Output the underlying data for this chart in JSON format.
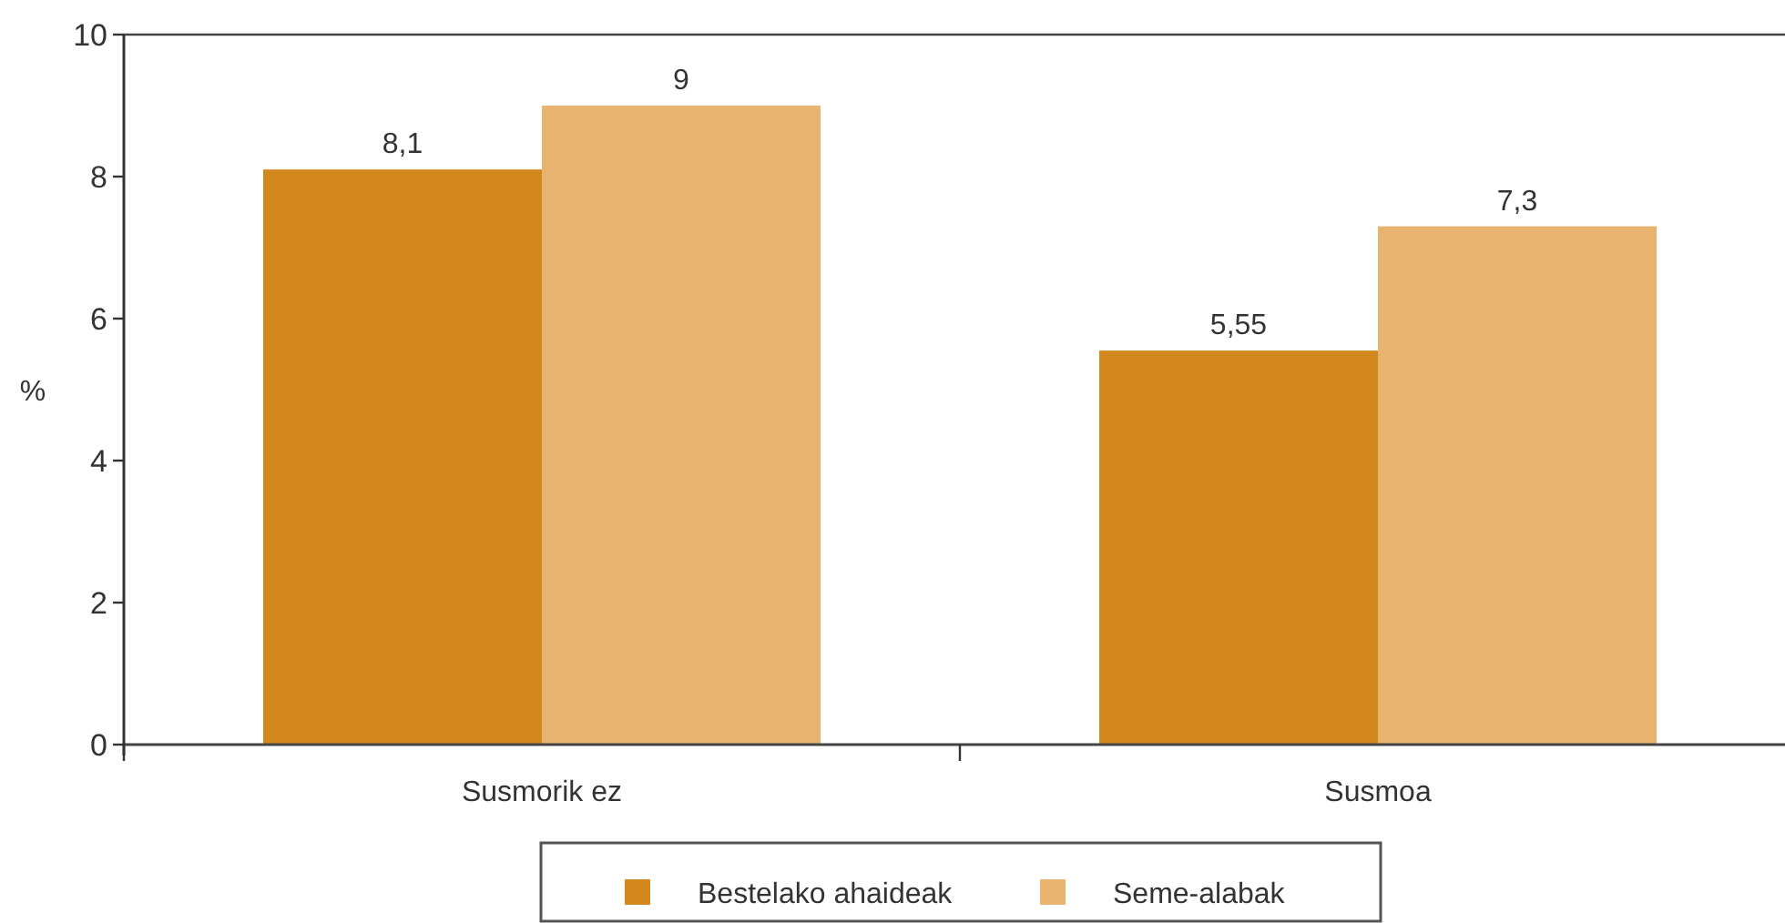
{
  "chart_data": {
    "type": "bar",
    "ylabel": "%",
    "categories": [
      "Susmorik ez",
      "Susmoa"
    ],
    "series": [
      {
        "name": "Bestelako ahaideak",
        "color": "#d2881c",
        "values": [
          8.1,
          5.55
        ],
        "value_labels": [
          "8,1",
          "5,55"
        ]
      },
      {
        "name": "Seme-alabak",
        "color": "#e8b36f",
        "values": [
          9,
          7.3
        ],
        "value_labels": [
          "9",
          "7,3"
        ]
      }
    ],
    "ylim": [
      0,
      10
    ],
    "yticks": [
      0,
      2,
      4,
      6,
      8,
      10
    ],
    "grid": false,
    "legend": "bottom"
  }
}
